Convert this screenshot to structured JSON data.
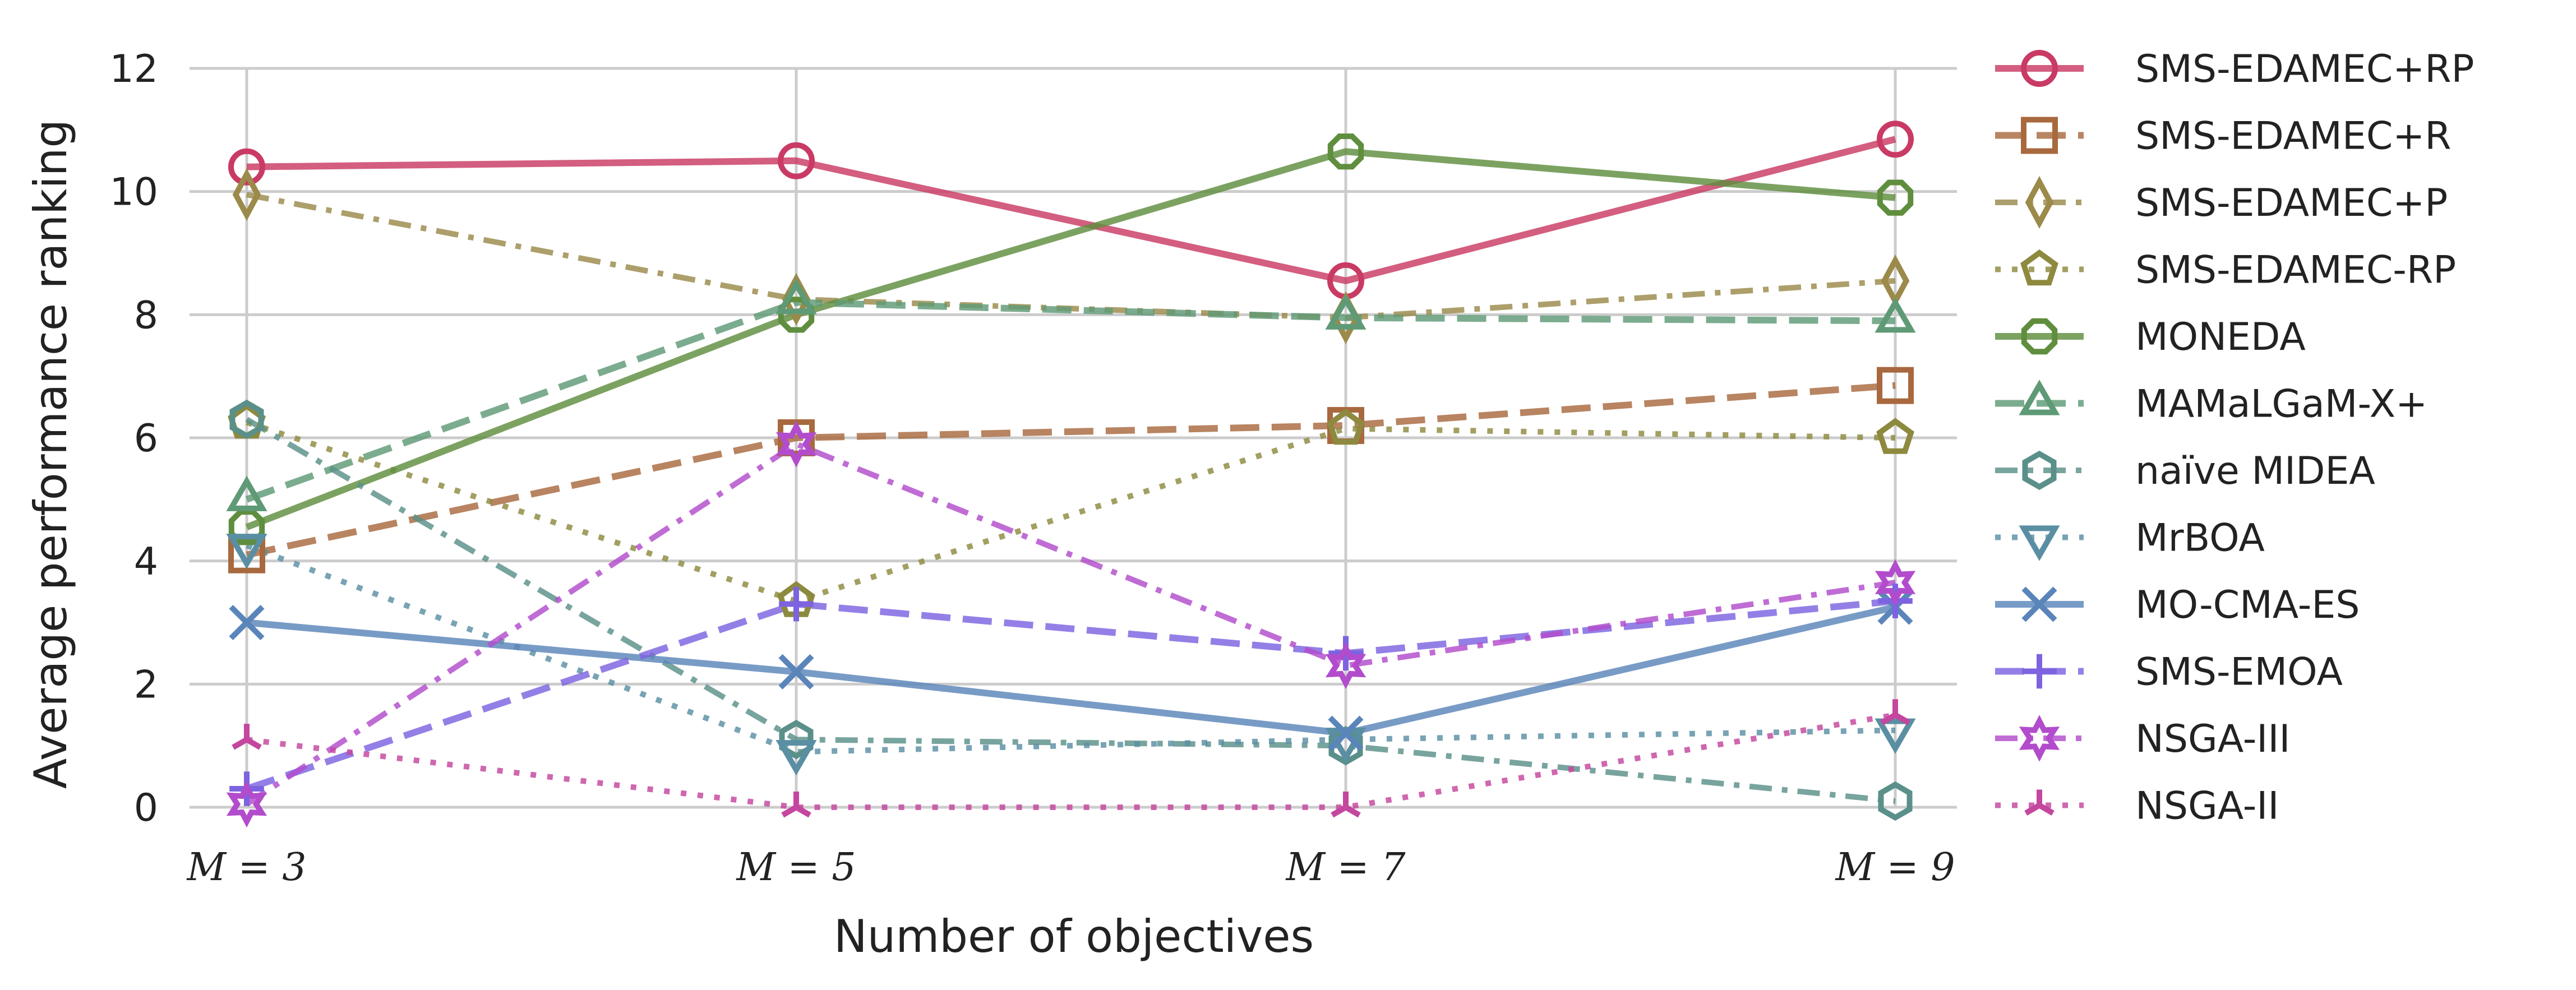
{
  "chart_data": {
    "type": "line",
    "title": "",
    "xlabel": "Number of objectives",
    "ylabel": "Average performance ranking",
    "categories": [
      "M = 3",
      "M = 5",
      "M = 7",
      "M = 9"
    ],
    "ylim": [
      0,
      12
    ],
    "yticks": [
      0,
      2,
      4,
      6,
      8,
      10,
      12
    ],
    "grid": true,
    "legend_position": "right",
    "series": [
      {
        "name": "SMS-EDAMEC+RP",
        "values": [
          10.4,
          10.5,
          8.55,
          10.85
        ],
        "color": "#c93a64",
        "dash": "solid",
        "marker": "circle",
        "width": 12
      },
      {
        "name": "SMS-EDAMEC+R",
        "values": [
          4.1,
          6.0,
          6.2,
          6.85
        ],
        "color": "#a8693e",
        "dash": "dashed",
        "marker": "square",
        "width": 12
      },
      {
        "name": "SMS-EDAMEC+P",
        "values": [
          9.95,
          8.25,
          7.95,
          8.55
        ],
        "color": "#9b8a4a",
        "dash": "dashdot",
        "marker": "thin_diamond",
        "width": 10
      },
      {
        "name": "SMS-EDAMEC-RP",
        "values": [
          6.25,
          3.35,
          6.15,
          6.0
        ],
        "color": "#8d8a3f",
        "dash": "dotted",
        "marker": "pentagon",
        "width": 10
      },
      {
        "name": "MONEDA",
        "values": [
          4.55,
          8.0,
          10.65,
          9.9
        ],
        "color": "#5f8e3e",
        "dash": "solid",
        "marker": "octagon",
        "width": 12
      },
      {
        "name": "MAMaLGaM-X+",
        "values": [
          5.0,
          8.2,
          7.95,
          7.9
        ],
        "color": "#5f9a76",
        "dash": "dashed",
        "marker": "triangle_up",
        "width": 12
      },
      {
        "name": "naïve MIDEA",
        "values": [
          6.3,
          1.1,
          1.0,
          0.1
        ],
        "color": "#5a9089",
        "dash": "dashdot",
        "marker": "hexagon",
        "width": 10
      },
      {
        "name": "MrBOA",
        "values": [
          4.25,
          0.9,
          1.1,
          1.25
        ],
        "color": "#5a8fa3",
        "dash": "dotted",
        "marker": "triangle_down",
        "width": 10
      },
      {
        "name": "MO-CMA-ES",
        "values": [
          3.0,
          2.2,
          1.2,
          3.25
        ],
        "color": "#5a85ba",
        "dash": "solid",
        "marker": "x",
        "width": 12
      },
      {
        "name": "SMS-EMOA",
        "values": [
          0.3,
          3.3,
          2.5,
          3.35
        ],
        "color": "#7d63e0",
        "dash": "dashed",
        "marker": "plus",
        "width": 12
      },
      {
        "name": "NSGA-III",
        "values": [
          0.05,
          5.9,
          2.3,
          3.65
        ],
        "color": "#b24ccc",
        "dash": "dashdot",
        "marker": "star",
        "width": 10
      },
      {
        "name": "NSGA-II",
        "values": [
          1.1,
          0.0,
          0.0,
          1.5
        ],
        "color": "#c4469e",
        "dash": "dotted",
        "marker": "tri_down",
        "width": 10
      }
    ]
  }
}
